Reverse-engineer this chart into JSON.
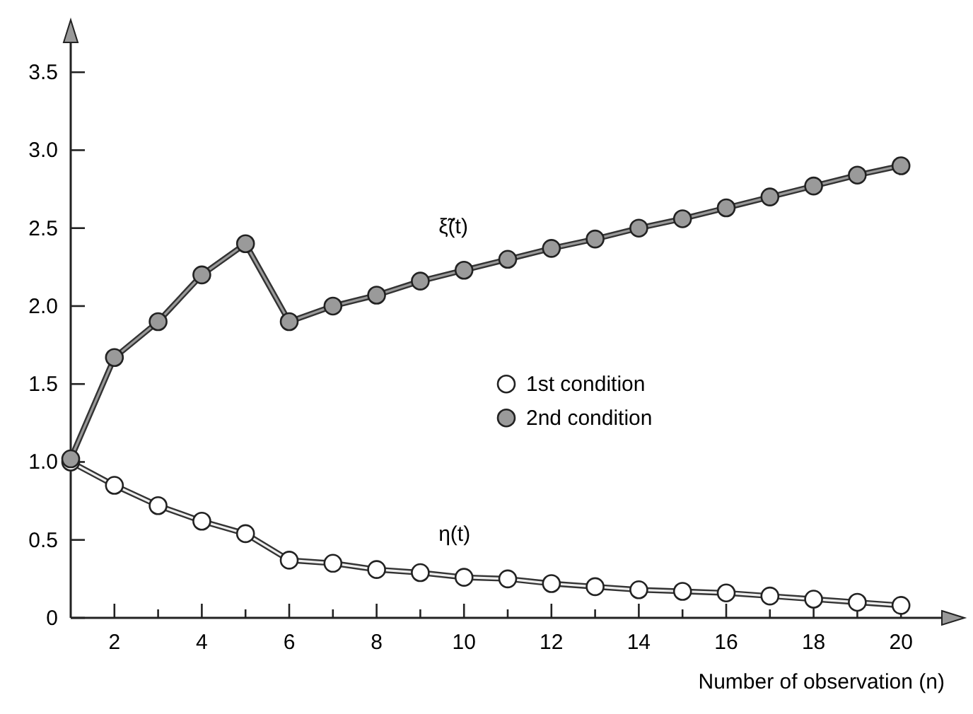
{
  "chart_data": {
    "type": "line",
    "xlabel": "Number of observation (n)",
    "x": [
      1,
      2,
      3,
      4,
      5,
      6,
      7,
      8,
      9,
      10,
      11,
      12,
      13,
      14,
      15,
      16,
      17,
      18,
      19,
      20
    ],
    "series": [
      {
        "name": "1st condition",
        "color": "#ffffff",
        "values": [
          1.0,
          0.85,
          0.72,
          0.62,
          0.54,
          0.37,
          0.35,
          0.31,
          0.29,
          0.26,
          0.25,
          0.22,
          0.2,
          0.18,
          0.17,
          0.16,
          0.14,
          0.12,
          0.1,
          0.08
        ]
      },
      {
        "name": "2nd condition",
        "color": "#9a9a9a",
        "values": [
          1.02,
          1.67,
          1.9,
          2.2,
          2.4,
          1.9,
          2.0,
          2.07,
          2.16,
          2.23,
          2.3,
          2.37,
          2.43,
          2.5,
          2.56,
          2.63,
          2.7,
          2.77,
          2.84,
          2.9
        ]
      }
    ],
    "xlim": [
      1,
      21
    ],
    "ylim": [
      0,
      3.8
    ],
    "xticks": [
      2,
      {
        "value": 3,
        "label": null
      },
      4,
      {
        "value": 5,
        "label": null
      },
      6,
      {
        "value": 7,
        "label": null
      },
      8,
      {
        "value": 9,
        "label": null
      },
      10,
      {
        "value": 11,
        "label": null
      },
      12,
      {
        "value": 13,
        "label": null
      },
      14,
      {
        "value": 15,
        "label": null
      },
      16,
      {
        "value": 17,
        "label": null
      },
      18,
      {
        "value": 19,
        "label": null
      },
      20
    ],
    "yticks": [
      0,
      0.5,
      {
        "value": 1,
        "label": "1.0"
      },
      1.5,
      {
        "value": 2,
        "label": "2.0"
      },
      2.5,
      {
        "value": 3,
        "label": "3.0"
      },
      3.5
    ],
    "annotations": [
      "η(t)",
      "ξ̃(t)"
    ],
    "legend": "right",
    "marker": "circle",
    "grid": false
  }
}
